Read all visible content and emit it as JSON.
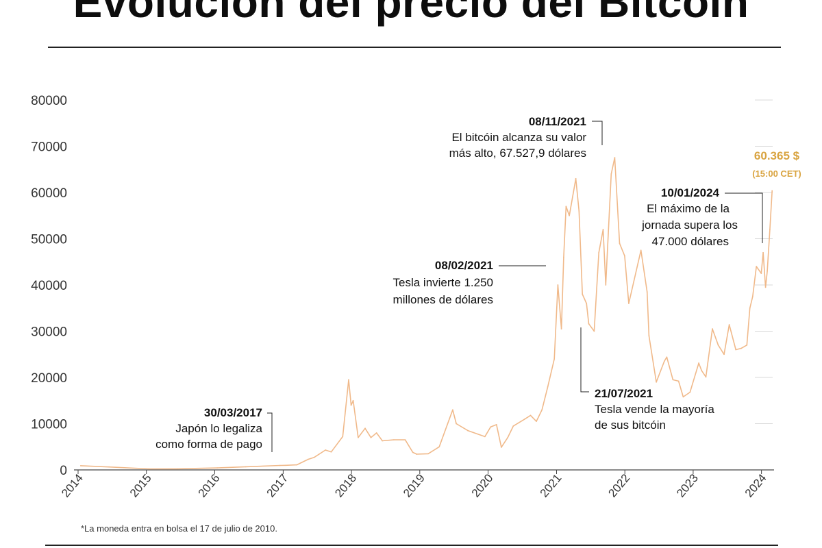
{
  "title": "Evolución del precio del Bitcoin",
  "footnote": "*La moneda entra en bolsa el 17 de julio de 2010.",
  "chart_data": {
    "type": "line",
    "xlabel": "",
    "ylabel": "",
    "ylim": [
      0,
      80000
    ],
    "yticks": [
      0,
      10000,
      20000,
      30000,
      40000,
      50000,
      60000,
      70000,
      80000
    ],
    "xticks": [
      "2014",
      "2015",
      "2016",
      "2017",
      "2018",
      "2019",
      "2020",
      "2021",
      "2022",
      "2023",
      "2024"
    ],
    "grid": false,
    "line_color": "#f0b98a",
    "series": [
      {
        "x": [
          "2014-01",
          "2014-06",
          "2015-01",
          "2015-06",
          "2016-01",
          "2016-06",
          "2016-12",
          "2017-01",
          "2017-03",
          "2017-05",
          "2017-06",
          "2017-08",
          "2017-09",
          "2017-11",
          "2017-12-17",
          "2017-12-30",
          "2018-01-10",
          "2018-02-06",
          "2018-03",
          "2018-04",
          "2018-05",
          "2018-06",
          "2018-08",
          "2018-10",
          "2018-11-25",
          "2018-12-15",
          "2019-02",
          "2019-04",
          "2019-06-26",
          "2019-07",
          "2019-09",
          "2019-12",
          "2020-01",
          "2020-02",
          "2020-03-12",
          "2020-04",
          "2020-05",
          "2020-07",
          "2020-08",
          "2020-09",
          "2020-10",
          "2020-11",
          "2020-12-20",
          "2021-01-08",
          "2021-01-27",
          "2021-02-08",
          "2021-02-21",
          "2021-03-10",
          "2021-04-14",
          "2021-05-01",
          "2021-05-19",
          "2021-06-10",
          "2021-06-22",
          "2021-07-21",
          "2021-08-15",
          "2021-09-07",
          "2021-09-21",
          "2021-10-20",
          "2021-11-08",
          "2021-12-04",
          "2021-12-31",
          "2022-01-22",
          "2022-03-28",
          "2022-04-30",
          "2022-05-10",
          "2022-06-18",
          "2022-07-31",
          "2022-08-13",
          "2022-09",
          "2022-10",
          "2022-11-09",
          "2022-12",
          "2023-01-31",
          "2023-02",
          "2023-03-10",
          "2023-04-14",
          "2023-05",
          "2023-06-15",
          "2023-07-13",
          "2023-08-17",
          "2023-09",
          "2023-10-15",
          "2023-10-31",
          "2023-11",
          "2023-12-05",
          "2023-12-31",
          "2024-01-10",
          "2024-01-23",
          "2024-02-01",
          "2024-02-15",
          "2024-02-27"
        ],
        "values": [
          900,
          640,
          220,
          240,
          430,
          680,
          960,
          1000,
          1100,
          2300,
          2700,
          4300,
          3900,
          7200,
          19500,
          14000,
          15000,
          7000,
          9000,
          7000,
          8000,
          6300,
          6500,
          6500,
          3800,
          3400,
          3500,
          5000,
          13000,
          10000,
          8500,
          7200,
          9300,
          9800,
          4900,
          7000,
          9500,
          11000,
          11800,
          10500,
          13000,
          18000,
          24000,
          40000,
          30500,
          46000,
          57000,
          55000,
          63000,
          56000,
          38000,
          36000,
          31600,
          30000,
          47000,
          52000,
          40000,
          64000,
          67528,
          49000,
          46300,
          36000,
          47500,
          38500,
          29000,
          19000,
          23500,
          24400,
          19500,
          19200,
          15800,
          16800,
          23100,
          21500,
          20100,
          30500,
          27000,
          25000,
          31400,
          26000,
          26300,
          27000,
          35000,
          37500,
          44000,
          42500,
          47000,
          39500,
          43000,
          52000,
          60365
        ]
      }
    ],
    "annotations": [
      {
        "date": "30/03/2017",
        "lines": [
          "Japón lo legaliza",
          "como forma de pago"
        ]
      },
      {
        "date": "08/02/2021",
        "lines": [
          "Tesla invierte 1.250",
          "millones de dólares"
        ]
      },
      {
        "date": "08/11/2021",
        "lines": [
          "El bitcóin alcanza su valor",
          "más alto, 67.527,9 dólares"
        ]
      },
      {
        "date": "21/07/2021",
        "lines": [
          "Tesla vende la mayoría",
          "de sus bitcóin"
        ]
      },
      {
        "date": "10/01/2024",
        "lines": [
          "El máximo de la",
          "jornada supera los",
          "47.000 dólares"
        ]
      }
    ],
    "last_value": {
      "label": "60.365 $",
      "time": "(15:00 CET)"
    }
  }
}
